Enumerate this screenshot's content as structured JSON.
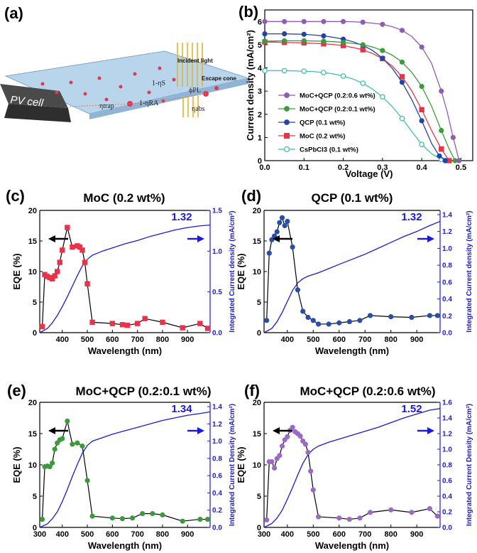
{
  "panel_labels": {
    "a": "(a)",
    "b": "(b)",
    "c": "(c)",
    "d": "(d)",
    "e": "(e)",
    "f": "(f)"
  },
  "schematic": {
    "pv_cell": "PV cell",
    "incident_light": "Incident light",
    "escape_cone": "Escape cone",
    "eta_s": "1-ηS",
    "eta_ra": "1-ηRA",
    "eta_trap": "ηtrap",
    "phi_pl": "ϕPL",
    "eta_abs": "ηabs",
    "colors": {
      "slab": "#b7d4ec",
      "edge": "#4a4a4a",
      "dot": "#e03a4e",
      "light": "#e3b431"
    }
  },
  "chart_data": [
    {
      "id": "b",
      "type": "line",
      "xlabel": "Voltage (V)",
      "ylabel": "Current density (mA/cm²)",
      "xlim": [
        0,
        0.53
      ],
      "ylim": [
        0,
        6.5
      ],
      "xticks": [
        "0.0",
        "0.1",
        "0.2",
        "0.3",
        "0.4",
        "0.5"
      ],
      "yticks": [
        "0",
        "1",
        "2",
        "3",
        "4",
        "5",
        "6"
      ],
      "series": [
        {
          "name": "MoC+QCP (0.2:0.6 wt%)",
          "color": "#8e5bb6",
          "marker": "circle",
          "filled": true,
          "x": [
            0,
            0.025,
            0.05,
            0.075,
            0.1,
            0.125,
            0.15,
            0.175,
            0.2,
            0.225,
            0.25,
            0.275,
            0.3,
            0.325,
            0.35,
            0.375,
            0.4,
            0.425,
            0.45,
            0.465,
            0.48,
            0.49,
            0.495
          ],
          "y": [
            6.0,
            6.0,
            6.0,
            6.0,
            6.0,
            6.0,
            6.0,
            6.0,
            6.0,
            5.99,
            5.97,
            5.93,
            5.88,
            5.78,
            5.62,
            5.35,
            4.9,
            4.2,
            3.0,
            2.1,
            1.0,
            0.35,
            0.0
          ]
        },
        {
          "name": "MoC+QCP (0.2:0.1 wt%)",
          "color": "#3d9a3d",
          "marker": "circle",
          "filled": true,
          "x": [
            0,
            0.025,
            0.05,
            0.075,
            0.1,
            0.125,
            0.15,
            0.175,
            0.2,
            0.225,
            0.25,
            0.275,
            0.3,
            0.325,
            0.35,
            0.375,
            0.4,
            0.425,
            0.45,
            0.47,
            0.485
          ],
          "y": [
            5.15,
            5.16,
            5.17,
            5.17,
            5.17,
            5.16,
            5.15,
            5.13,
            5.1,
            5.06,
            5.0,
            4.9,
            4.75,
            4.55,
            4.25,
            3.8,
            3.2,
            2.35,
            1.3,
            0.5,
            0.0
          ]
        },
        {
          "name": "QCP (0.1 wt%)",
          "color": "#2244aa",
          "marker": "circle",
          "filled": true,
          "x": [
            0,
            0.025,
            0.05,
            0.075,
            0.1,
            0.125,
            0.15,
            0.175,
            0.2,
            0.225,
            0.25,
            0.275,
            0.3,
            0.325,
            0.35,
            0.375,
            0.4,
            0.425,
            0.445,
            0.46
          ],
          "y": [
            5.47,
            5.47,
            5.47,
            5.46,
            5.45,
            5.42,
            5.38,
            5.32,
            5.24,
            5.13,
            4.97,
            4.75,
            4.42,
            3.98,
            3.38,
            2.62,
            1.72,
            0.75,
            0.2,
            0.0
          ]
        },
        {
          "name": "MoC (0.2 wt%)",
          "color": "#e8334a",
          "marker": "square",
          "filled": true,
          "x": [
            0,
            0.025,
            0.05,
            0.075,
            0.1,
            0.125,
            0.15,
            0.175,
            0.2,
            0.225,
            0.25,
            0.275,
            0.3,
            0.325,
            0.35,
            0.375,
            0.4,
            0.425,
            0.45,
            0.47
          ],
          "y": [
            5.12,
            5.11,
            5.1,
            5.09,
            5.08,
            5.06,
            5.04,
            5.01,
            4.96,
            4.88,
            4.78,
            4.62,
            4.4,
            4.08,
            3.62,
            3.0,
            2.2,
            1.3,
            0.5,
            0.0
          ]
        },
        {
          "name": "CsPbCl3 (0.1 wt%)",
          "color": "#3fbfb4",
          "marker": "circle",
          "filled": false,
          "x": [
            0,
            0.025,
            0.05,
            0.075,
            0.1,
            0.125,
            0.15,
            0.175,
            0.2,
            0.225,
            0.25,
            0.275,
            0.3,
            0.325,
            0.35,
            0.375,
            0.4,
            0.425,
            0.45,
            0.46
          ],
          "y": [
            3.88,
            3.88,
            3.88,
            3.87,
            3.86,
            3.84,
            3.8,
            3.74,
            3.65,
            3.52,
            3.34,
            3.08,
            2.75,
            2.33,
            1.82,
            1.25,
            0.7,
            0.3,
            0.05,
            0.0
          ]
        }
      ]
    },
    {
      "id": "c",
      "type": "line",
      "title": "MoC (0.2 wt%)",
      "xlabel": "Wavelength (nm)",
      "ylabel": "EQE (%)",
      "y2label": "Integrated Current density (mA/cm²)",
      "xlim": [
        310,
        990
      ],
      "ylim": [
        0,
        20
      ],
      "y2lim": [
        0,
        1.5
      ],
      "xticks": [
        "400",
        "500",
        "600",
        "700",
        "800",
        "900"
      ],
      "yticks": [
        "0",
        "5",
        "10",
        "15",
        "20"
      ],
      "y2ticks": [
        "0.0",
        "0.5",
        "1.0",
        "1.5"
      ],
      "annotation": "1.32",
      "eqe_color": "#e8334a",
      "eqe_marker": "square",
      "eqe_x": [
        320,
        330,
        340,
        350,
        360,
        370,
        380,
        390,
        400,
        420,
        440,
        460,
        470,
        480,
        490,
        500,
        520,
        600,
        640,
        660,
        700,
        730,
        800,
        880,
        950,
        980
      ],
      "eqe_y": [
        1.0,
        9.5,
        9.2,
        9.0,
        8.8,
        9.3,
        10.0,
        11.5,
        13.5,
        17.2,
        14.0,
        14.2,
        14.0,
        13.5,
        11.5,
        8.0,
        1.7,
        1.5,
        1.3,
        1.2,
        1.5,
        2.3,
        1.7,
        0.8,
        1.5,
        0.7
      ],
      "jsc_x": [
        310,
        340,
        360,
        380,
        400,
        420,
        440,
        460,
        480,
        500,
        520,
        560,
        600,
        650,
        700,
        750,
        800,
        850,
        900,
        950,
        990
      ],
      "jsc_y": [
        0,
        0.05,
        0.12,
        0.21,
        0.32,
        0.44,
        0.57,
        0.7,
        0.82,
        0.9,
        0.95,
        1.0,
        1.04,
        1.09,
        1.13,
        1.18,
        1.22,
        1.26,
        1.29,
        1.31,
        1.32
      ]
    },
    {
      "id": "d",
      "type": "line",
      "title": "QCP (0.1 wt%)",
      "xlabel": "Wavelength (nm)",
      "ylabel": "EQE (%)",
      "y2label": "Integrated Current density (mA/cm²)",
      "xlim": [
        310,
        990
      ],
      "ylim": [
        0,
        20
      ],
      "y2lim": [
        0,
        1.45
      ],
      "xticks": [
        "400",
        "500",
        "600",
        "700",
        "800",
        "900"
      ],
      "yticks": [
        "0",
        "5",
        "10",
        "15",
        "20"
      ],
      "y2ticks": [
        "0.0",
        "0.2",
        "0.4",
        "0.6",
        "0.8",
        "1.0",
        "1.2",
        "1.4"
      ],
      "annotation": "1.32",
      "eqe_color": "#2a4ea8",
      "eqe_marker": "circle",
      "eqe_x": [
        320,
        330,
        340,
        350,
        360,
        370,
        380,
        390,
        400,
        420,
        440,
        460,
        480,
        500,
        520,
        560,
        600,
        640,
        680,
        720,
        800,
        880,
        950,
        980
      ],
      "eqe_y": [
        2.0,
        13.0,
        15.2,
        15.8,
        16.5,
        18.0,
        18.8,
        17.5,
        18.2,
        14.0,
        7.0,
        3.5,
        2.5,
        2.0,
        1.4,
        1.4,
        1.6,
        1.8,
        2.0,
        2.8,
        2.6,
        2.5,
        2.8,
        2.8
      ],
      "jsc_x": [
        310,
        340,
        360,
        380,
        400,
        420,
        440,
        460,
        480,
        500,
        520,
        560,
        600,
        650,
        700,
        750,
        800,
        850,
        900,
        950,
        990
      ],
      "jsc_y": [
        0,
        0.05,
        0.13,
        0.24,
        0.37,
        0.5,
        0.59,
        0.64,
        0.67,
        0.69,
        0.71,
        0.76,
        0.81,
        0.87,
        0.93,
        1.0,
        1.07,
        1.14,
        1.2,
        1.27,
        1.32
      ]
    },
    {
      "id": "e",
      "type": "line",
      "title": "MoC+QCP (0.2:0.1 wt%)",
      "xlabel": "Wavelength (nm)",
      "ylabel": "EQE (%)",
      "y2label": "Integrated Current Density (mA/cm²)",
      "xlim": [
        310,
        990
      ],
      "ylim": [
        0,
        20
      ],
      "y2lim": [
        0,
        1.45
      ],
      "xticks": [
        "300",
        "400",
        "500",
        "600",
        "700",
        "800",
        "900"
      ],
      "yticks": [
        "0",
        "5",
        "10",
        "15",
        "20"
      ],
      "y2ticks": [
        "0.0",
        "0.2",
        "0.4",
        "0.6",
        "0.8",
        "1.0",
        "1.2",
        "1.4"
      ],
      "annotation": "1.34",
      "eqe_color": "#3c9a3c",
      "eqe_marker": "circle",
      "eqe_x": [
        320,
        330,
        340,
        350,
        360,
        370,
        380,
        390,
        400,
        420,
        440,
        460,
        480,
        500,
        520,
        600,
        640,
        680,
        720,
        760,
        800,
        880,
        950,
        980
      ],
      "eqe_y": [
        1.3,
        9.7,
        9.8,
        9.7,
        10.3,
        12.5,
        13.5,
        14.0,
        14.2,
        17.0,
        13.3,
        13.5,
        13.0,
        7.5,
        1.8,
        1.5,
        1.4,
        1.5,
        2.2,
        2.2,
        2.0,
        1.0,
        1.3,
        1.3
      ],
      "jsc_x": [
        310,
        340,
        360,
        380,
        400,
        420,
        440,
        460,
        480,
        500,
        520,
        560,
        600,
        650,
        700,
        750,
        800,
        850,
        900,
        950,
        990
      ],
      "jsc_y": [
        0,
        0.04,
        0.1,
        0.18,
        0.3,
        0.44,
        0.59,
        0.73,
        0.86,
        0.95,
        1.0,
        1.04,
        1.08,
        1.12,
        1.16,
        1.2,
        1.24,
        1.27,
        1.3,
        1.32,
        1.34
      ]
    },
    {
      "id": "f",
      "type": "line",
      "title": "MoC+QCP (0.2:0.6 wt%)",
      "xlabel": "Wavelength (nm)",
      "ylabel": "EQE (%)",
      "y2label": "Integrated Current Density (mA/cm²)",
      "xlim": [
        310,
        990
      ],
      "ylim": [
        0,
        20
      ],
      "y2lim": [
        0,
        1.6
      ],
      "xticks": [
        "300",
        "400",
        "500",
        "600",
        "700",
        "800",
        "900"
      ],
      "yticks": [
        "0",
        "5",
        "10",
        "15",
        "20"
      ],
      "y2ticks": [
        "0.0",
        "0.2",
        "0.4",
        "0.6",
        "0.8",
        "1.0",
        "1.2",
        "1.4",
        "1.6"
      ],
      "annotation": "1.52",
      "eqe_color": "#9b6ac4",
      "eqe_marker": "circle",
      "eqe_x": [
        320,
        330,
        340,
        350,
        360,
        370,
        380,
        390,
        400,
        410,
        420,
        430,
        440,
        450,
        460,
        470,
        480,
        490,
        500,
        520,
        600,
        640,
        680,
        720,
        800,
        880,
        950,
        980
      ],
      "eqe_y": [
        1.2,
        10.5,
        10.5,
        9.5,
        11.0,
        11.5,
        13.0,
        14.0,
        14.5,
        15.5,
        16.0,
        15.3,
        15.0,
        14.6,
        13.8,
        13.3,
        12.0,
        9.0,
        6.0,
        1.7,
        1.5,
        1.3,
        1.5,
        2.4,
        2.8,
        2.4,
        3.0,
        1.8
      ],
      "jsc_x": [
        310,
        340,
        360,
        380,
        400,
        420,
        440,
        460,
        480,
        500,
        520,
        560,
        600,
        650,
        700,
        750,
        800,
        850,
        900,
        950,
        990
      ],
      "jsc_y": [
        0,
        0.05,
        0.12,
        0.22,
        0.36,
        0.51,
        0.67,
        0.82,
        0.93,
        1.0,
        1.04,
        1.09,
        1.13,
        1.18,
        1.23,
        1.28,
        1.34,
        1.4,
        1.45,
        1.5,
        1.52
      ]
    }
  ]
}
